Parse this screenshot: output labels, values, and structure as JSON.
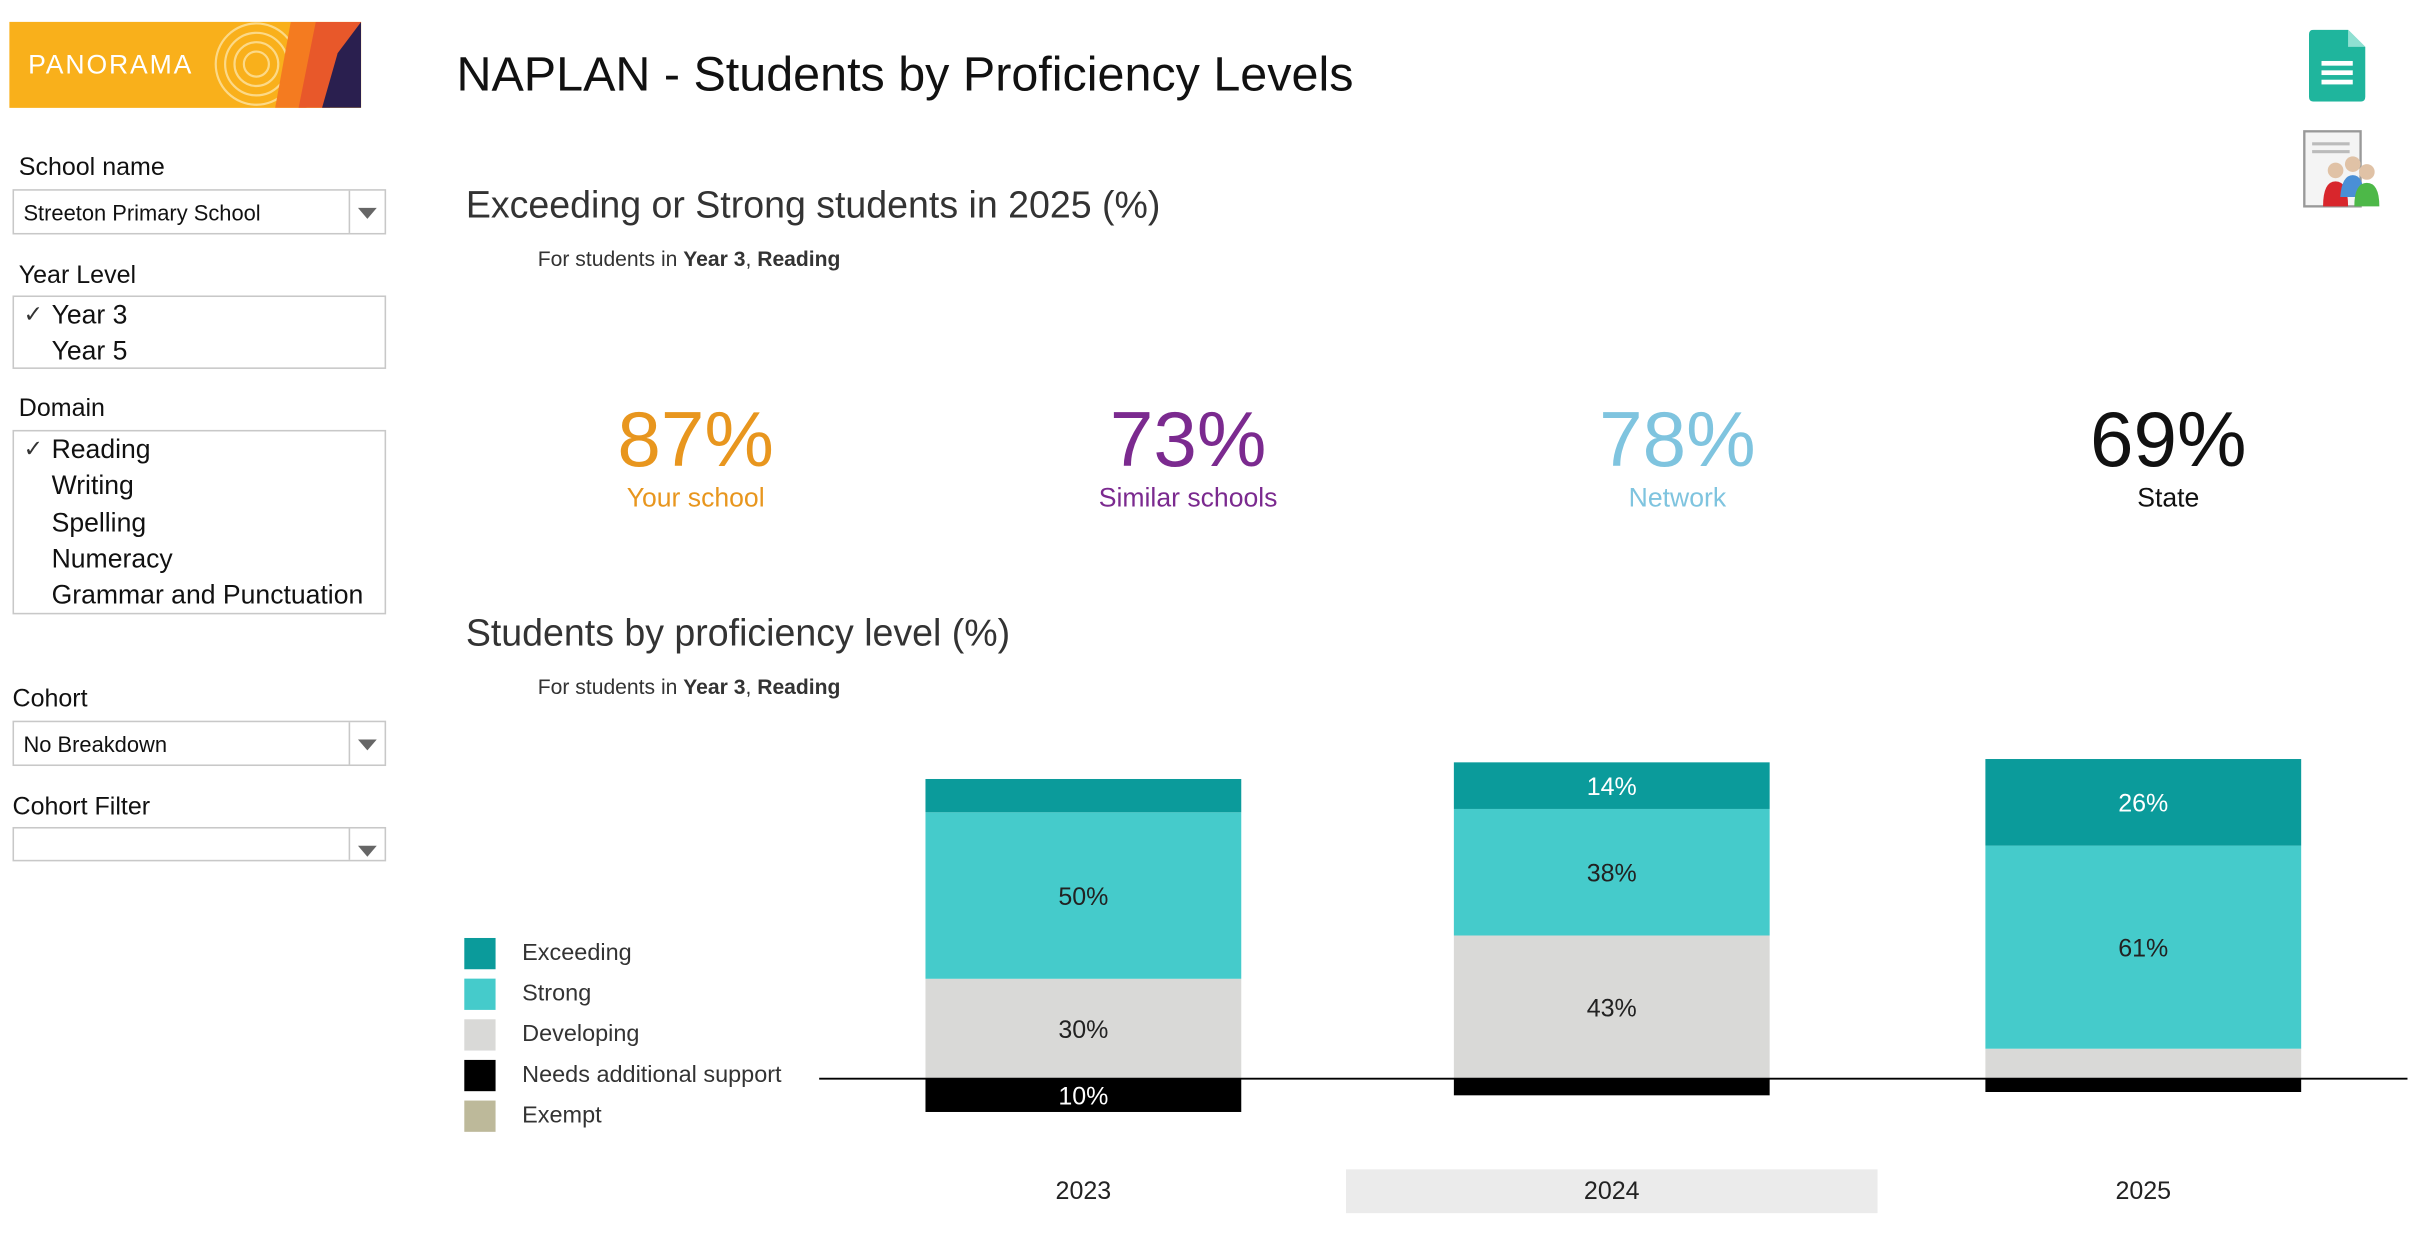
{
  "logo": {
    "text": "PANORAMA"
  },
  "page_title": "NAPLAN - Students by Proficiency Levels",
  "filters": {
    "school": {
      "label": "School name",
      "value": "Streeton Primary School"
    },
    "year_level": {
      "label": "Year Level",
      "options": [
        {
          "label": "Year 3",
          "checked": "✓"
        },
        {
          "label": "Year 5",
          "checked": ""
        }
      ]
    },
    "domain": {
      "label": "Domain",
      "options": [
        {
          "label": "Reading",
          "checked": "✓"
        },
        {
          "label": "Writing",
          "checked": ""
        },
        {
          "label": "Spelling",
          "checked": ""
        },
        {
          "label": "Numeracy",
          "checked": ""
        },
        {
          "label": "Grammar and Punctuation",
          "checked": ""
        }
      ]
    },
    "cohort": {
      "label": "Cohort",
      "value": "No Breakdown"
    },
    "cohort_filter": {
      "label": "Cohort Filter",
      "value": ""
    }
  },
  "kpi_section": {
    "title": "Exceeding or Strong students in 2025 (%)",
    "subtitle": {
      "prefix": "For students in ",
      "year": "Year 3",
      "sep": ", ",
      "domain": "Reading"
    },
    "items": [
      {
        "value": "87%",
        "label": "Your school",
        "color": "#e8961e"
      },
      {
        "value": "73%",
        "label": "Similar schools",
        "color": "#7b2a8f"
      },
      {
        "value": "78%",
        "label": "Network",
        "color": "#7fc4df"
      },
      {
        "value": "69%",
        "label": "State",
        "color": "#111111"
      }
    ]
  },
  "chart_section": {
    "title": "Students by proficiency level (%)",
    "subtitle": {
      "prefix": "For students in ",
      "year": "Year 3",
      "sep": ", ",
      "domain": "Reading"
    }
  },
  "chart_data": {
    "type": "bar",
    "stacked": "diverging",
    "categories": [
      "2023",
      "2024",
      "2025"
    ],
    "highlighted_category": "2024",
    "series": [
      {
        "name": "Exceeding",
        "color": "#0b9b9b",
        "values": [
          10,
          14,
          26
        ],
        "labels": [
          "",
          "14%",
          "26%"
        ]
      },
      {
        "name": "Strong",
        "color": "#45cbcb",
        "values": [
          50,
          38,
          61
        ],
        "labels": [
          "50%",
          "38%",
          "61%"
        ]
      },
      {
        "name": "Developing",
        "color": "#d9d9d7",
        "values": [
          30,
          43,
          9
        ],
        "labels": [
          "30%",
          "43%",
          ""
        ]
      },
      {
        "name": "Needs additional support",
        "color": "#000000",
        "values": [
          10,
          5,
          4
        ],
        "labels": [
          "10%",
          "",
          ""
        ]
      },
      {
        "name": "Exempt",
        "color": "#bdb99a",
        "values": [
          0,
          0,
          0
        ],
        "labels": [
          "",
          "",
          ""
        ]
      }
    ],
    "legend_position": "left"
  }
}
